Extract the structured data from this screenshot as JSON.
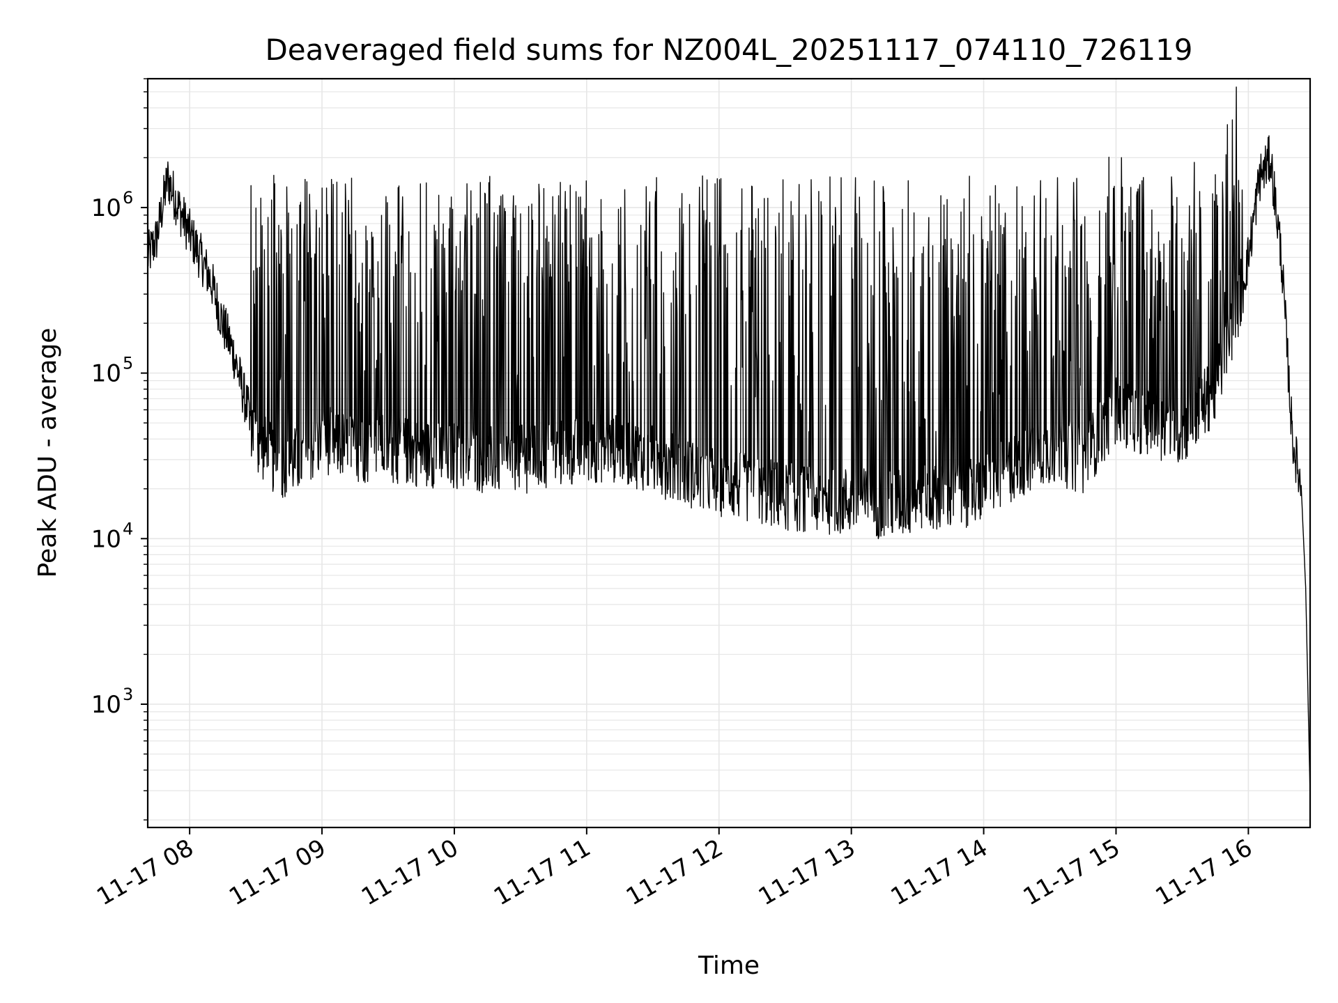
{
  "chart_data": {
    "type": "line",
    "title": "Deaveraged field sums for NZ004L_20251117_074110_726119",
    "xlabel": "Time",
    "ylabel": "Peak ADU - average",
    "yscale": "log",
    "grid": true,
    "line_color": "#000000",
    "grid_color": "#e6e6e6",
    "xlim": [
      "11-17 07:41",
      "11-17 16:28"
    ],
    "ylim": [
      180,
      6000000
    ],
    "x_ticks": [
      "11-17 08",
      "11-17 09",
      "11-17 10",
      "11-17 11",
      "11-17 12",
      "11-17 13",
      "11-17 14",
      "11-17 15",
      "11-17 16"
    ],
    "y_ticks": [
      {
        "base": "10",
        "exp": "3",
        "value": 1000
      },
      {
        "base": "10",
        "exp": "4",
        "value": 10000
      },
      {
        "base": "10",
        "exp": "5",
        "value": 100000
      },
      {
        "base": "10",
        "exp": "6",
        "value": 1000000
      }
    ],
    "series": [
      {
        "x": [
          "11-17 07:41",
          "11-17 07:45",
          "11-17 07:50",
          "11-17 07:55",
          "11-17 08:00",
          "11-17 08:05",
          "11-17 08:10",
          "11-17 08:15",
          "11-17 08:20",
          "11-17 08:25",
          "11-17 08:30",
          "11-17 08:40",
          "11-17 08:50",
          "11-17 09:00",
          "11-17 09:15",
          "11-17 09:30",
          "11-17 09:45",
          "11-17 10:00",
          "11-17 10:15",
          "11-17 10:30",
          "11-17 10:45",
          "11-17 11:00",
          "11-17 11:15",
          "11-17 11:30",
          "11-17 11:45",
          "11-17 12:00",
          "11-17 12:15",
          "11-17 12:30",
          "11-17 12:45",
          "11-17 13:00",
          "11-17 13:15",
          "11-17 13:30",
          "11-17 13:45",
          "11-17 14:00",
          "11-17 14:15",
          "11-17 14:30",
          "11-17 14:45",
          "11-17 15:00",
          "11-17 15:15",
          "11-17 15:30",
          "11-17 15:45",
          "11-17 15:55",
          "11-17 16:00",
          "11-17 16:05",
          "11-17 16:10",
          "11-17 16:15",
          "11-17 16:20",
          "11-17 16:24",
          "11-17 16:26",
          "11-17 16:28"
        ],
        "y": [
          500000,
          650000,
          1500000,
          1000000,
          700000,
          500000,
          350000,
          200000,
          130000,
          70000,
          40000,
          28000,
          30000,
          40000,
          35000,
          35000,
          33000,
          32000,
          30000,
          30000,
          32000,
          35000,
          35000,
          30000,
          25000,
          22000,
          20000,
          18000,
          17000,
          17000,
          16000,
          17000,
          18000,
          20000,
          28000,
          35000,
          30000,
          60000,
          50000,
          45000,
          80000,
          250000,
          500000,
          1500000,
          2000000,
          500000,
          40000,
          20000,
          5000,
          280
        ]
      }
    ]
  }
}
